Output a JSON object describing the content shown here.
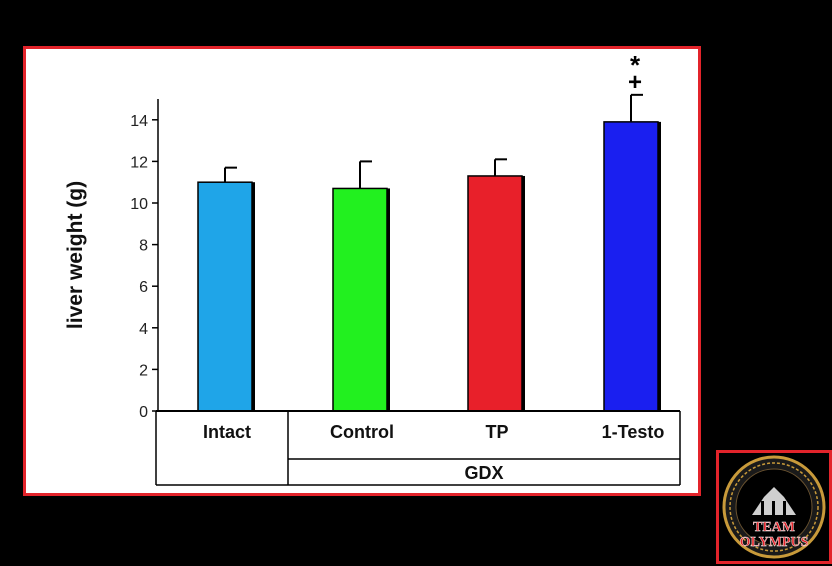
{
  "chart_data": {
    "type": "bar",
    "ylabel": "liver weight (g)",
    "xlabel": "",
    "ylim": [
      0,
      15
    ],
    "yticks": [
      0,
      2,
      4,
      6,
      8,
      10,
      12,
      14
    ],
    "categories": [
      "Intact",
      "Control",
      "TP",
      "1-Testo"
    ],
    "values": [
      11.0,
      10.7,
      11.3,
      13.9
    ],
    "errors": [
      0.7,
      1.3,
      0.8,
      1.3
    ],
    "colors": [
      "#1fa5e8",
      "#22f01f",
      "#e8202a",
      "#1a1ff0"
    ],
    "group_label": "GDX",
    "group_members": [
      "Control",
      "TP",
      "1-Testo"
    ],
    "annotations": [
      {
        "category": "1-Testo",
        "symbols": [
          "+",
          "*"
        ]
      }
    ]
  },
  "logo": {
    "line1": "TEAM",
    "line2": "OLYMPUS"
  }
}
